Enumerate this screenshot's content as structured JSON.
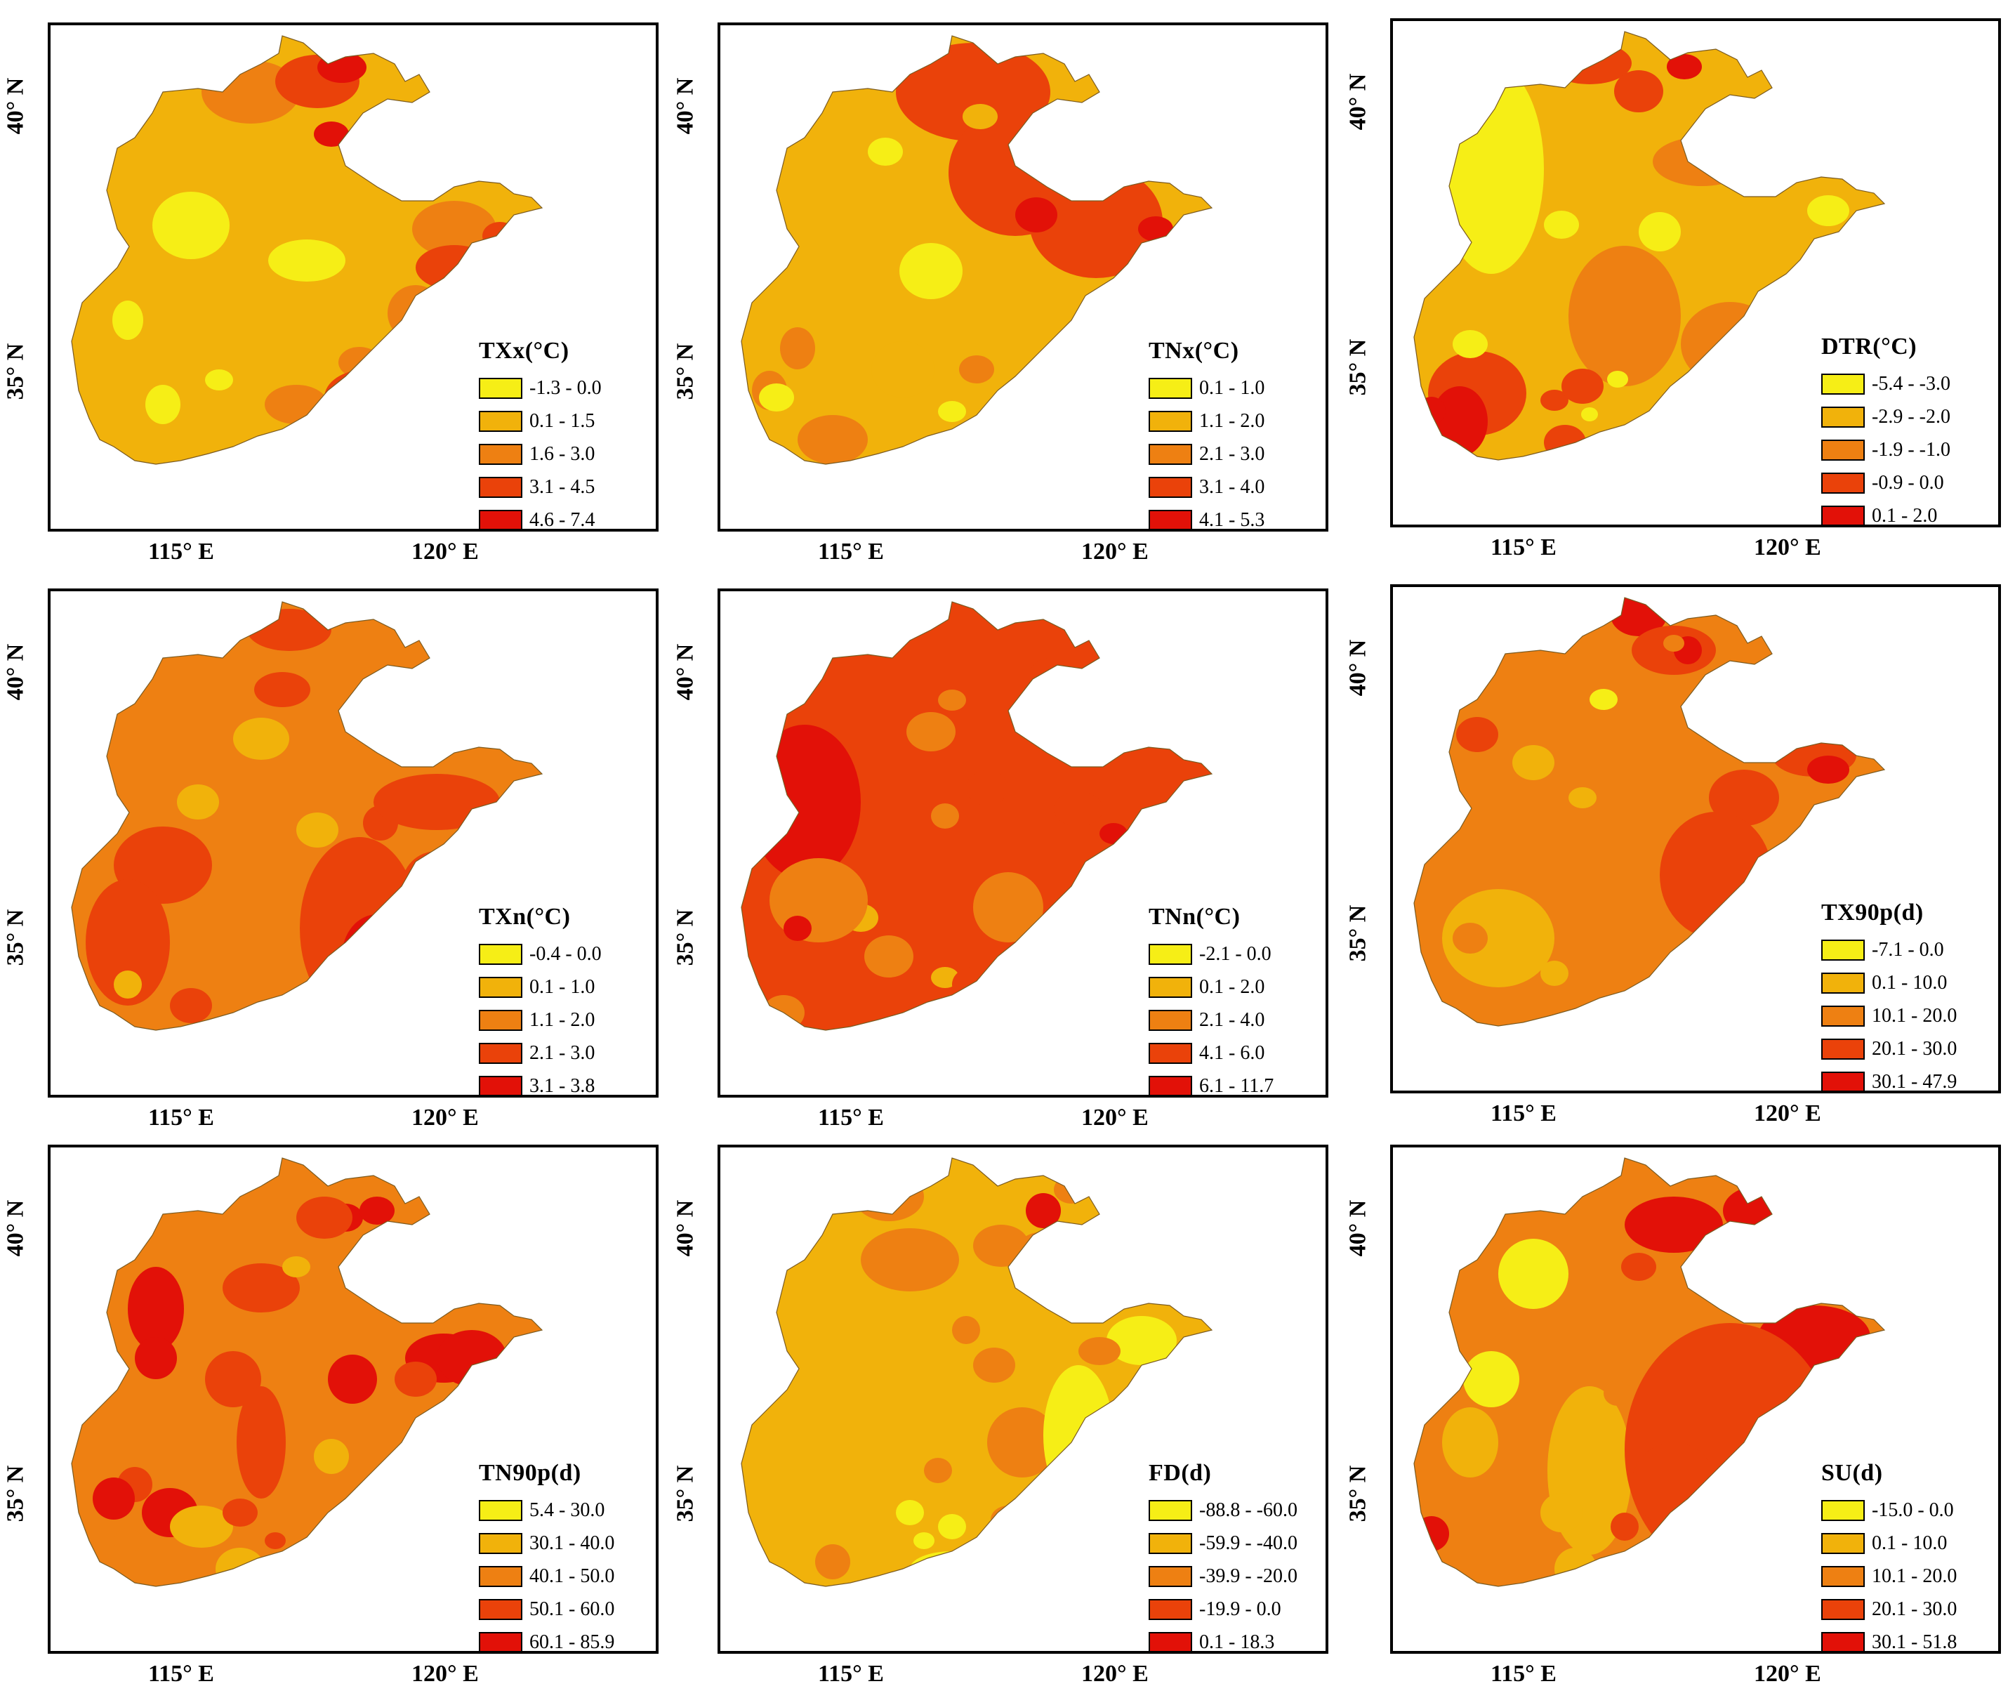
{
  "axis": {
    "lat40": "40° N",
    "lat35": "35° N",
    "lon115": "115° E",
    "lon120": "120° E"
  },
  "colors": [
    "#f6ee16",
    "#f1b20b",
    "#ee8012",
    "#ea420a",
    "#e21108"
  ],
  "panels": [
    {
      "title": "TXx(°C)",
      "ranges": [
        "-1.3 - 0.0",
        "0.1 - 1.5",
        "1.6 - 3.0",
        "3.1 - 4.5",
        "4.6 - 7.4"
      ]
    },
    {
      "title": "TNx(°C)",
      "ranges": [
        "0.1 - 1.0",
        "1.1 - 2.0",
        "2.1 - 3.0",
        "3.1 - 4.0",
        "4.1 - 5.3"
      ]
    },
    {
      "title": "DTR(°C)",
      "ranges": [
        "-5.4 - -3.0",
        "-2.9 - -2.0",
        "-1.9 - -1.0",
        "-0.9 - 0.0",
        "0.1 - 2.0"
      ]
    },
    {
      "title": "TXn(°C)",
      "ranges": [
        "-0.4 - 0.0",
        "0.1 - 1.0",
        "1.1 - 2.0",
        "2.1 - 3.0",
        "3.1 - 3.8"
      ]
    },
    {
      "title": "TNn(°C)",
      "ranges": [
        "-2.1 - 0.0",
        "0.1 - 2.0",
        "2.1 - 4.0",
        "4.1 - 6.0",
        "6.1 - 11.7"
      ]
    },
    {
      "title": "TX90p(d)",
      "ranges": [
        "-7.1 - 0.0",
        "0.1 - 10.0",
        "10.1 - 20.0",
        "20.1 - 30.0",
        "30.1 - 47.9"
      ]
    },
    {
      "title": "TN90p(d)",
      "ranges": [
        "5.4 - 30.0",
        "30.1 - 40.0",
        "40.1 - 50.0",
        "50.1 - 60.0",
        "60.1 - 85.9"
      ]
    },
    {
      "title": "FD(d)",
      "ranges": [
        "-88.8 - -60.0",
        "-59.9 - -40.0",
        "-39.9 - -20.0",
        "-19.9 - 0.0",
        "0.1 - 18.3"
      ]
    },
    {
      "title": "SU(d)",
      "ranges": [
        "-15.0 - 0.0",
        "0.1 - 10.0",
        "10.1 - 20.0",
        "20.1 - 30.0",
        "30.1 - 51.8"
      ]
    }
  ]
}
